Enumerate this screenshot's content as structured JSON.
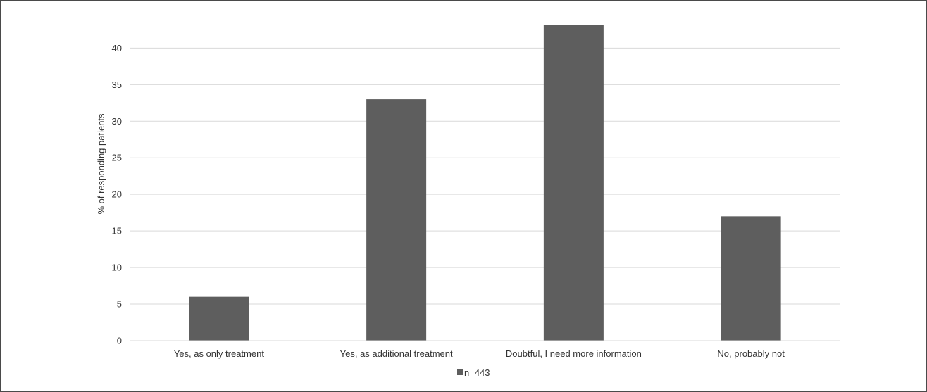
{
  "chart_data": {
    "type": "bar",
    "categories": [
      "Yes, as only treatment",
      "Yes, as additional treatment",
      "Doubtful, I need more information",
      "No, probably not"
    ],
    "series": [
      {
        "name": "n=443",
        "values": [
          6,
          33,
          43.2,
          17
        ],
        "color": "#5e5e5e"
      }
    ],
    "ylabel": "% of responding patients",
    "xlabel": "",
    "ylim": [
      0,
      43.5
    ],
    "yticks": [
      0,
      5,
      10,
      15,
      20,
      25,
      30,
      35,
      40
    ],
    "grid": true,
    "legend_position": "bottom-center"
  }
}
